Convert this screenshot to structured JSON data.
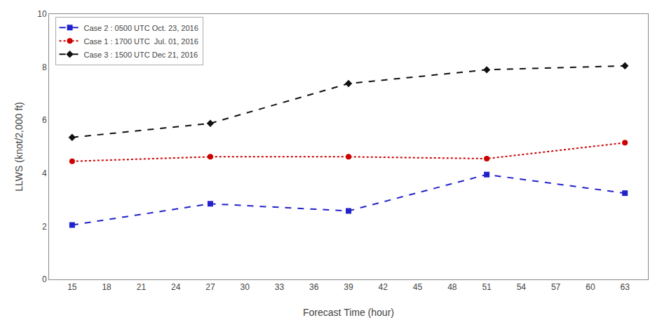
{
  "chart_data": {
    "type": "line",
    "x": [
      15,
      27,
      39,
      51,
      63
    ],
    "series": [
      {
        "name": "Case 2 : 0500 UTC Oct. 23, 2016",
        "color": "#2222cc",
        "marker": "square",
        "line_style": "dash",
        "values": [
          2.05,
          2.85,
          2.58,
          3.95,
          3.25
        ]
      },
      {
        "name": "Case 1 : 1700 UTC  Jul. 01, 2016",
        "color": "#cc0000",
        "marker": "circle",
        "line_style": "dot",
        "values": [
          4.45,
          4.62,
          4.62,
          4.55,
          5.15
        ]
      },
      {
        "name": "Case 3 : 1500 UTC Dec 21, 2016",
        "color": "#111111",
        "marker": "diamond",
        "line_style": "dash",
        "values": [
          5.35,
          5.88,
          7.38,
          7.9,
          8.05
        ]
      }
    ],
    "xlabel": "Forecast Time (hour)",
    "ylabel": "LLWS (knot/2,000 ft)",
    "xlim": [
      13,
      65
    ],
    "ylim": [
      0,
      10
    ],
    "xticks": [
      15,
      18,
      21,
      24,
      27,
      30,
      33,
      36,
      39,
      42,
      45,
      48,
      51,
      54,
      57,
      60,
      63
    ],
    "yticks": [
      0,
      2,
      4,
      6,
      8,
      10
    ],
    "grid": false,
    "legend": "upper left"
  }
}
